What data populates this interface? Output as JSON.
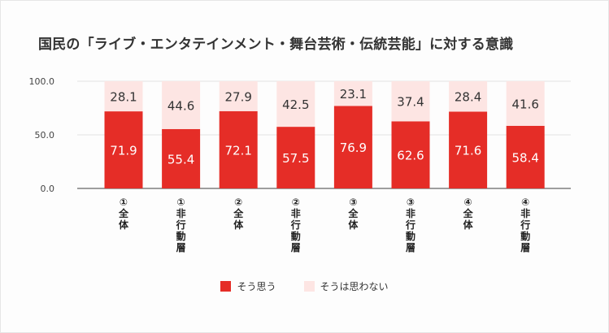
{
  "title": "国民の「ライブ・エンタテインメント・舞台芸術・伝統芸能」に対する意識",
  "chart_data": {
    "type": "bar",
    "stacked": true,
    "categories": [
      "①全体",
      "①非行動層",
      "②全体",
      "②非行動層",
      "③全体",
      "③非行動層",
      "④全体",
      "④非行動層"
    ],
    "series": [
      {
        "name": "そう思う",
        "color": "#e52d27",
        "values": [
          71.9,
          55.4,
          72.1,
          57.5,
          76.9,
          62.6,
          71.6,
          58.4
        ]
      },
      {
        "name": "そうは思わない",
        "color": "#fde5e3",
        "values": [
          28.1,
          44.6,
          27.9,
          42.5,
          23.1,
          37.4,
          28.4,
          41.6
        ]
      }
    ],
    "ylim": [
      0,
      100
    ],
    "yticks": [
      "0.0",
      "50.0",
      "100.0"
    ],
    "grid": true,
    "legend": "bottom-center"
  }
}
